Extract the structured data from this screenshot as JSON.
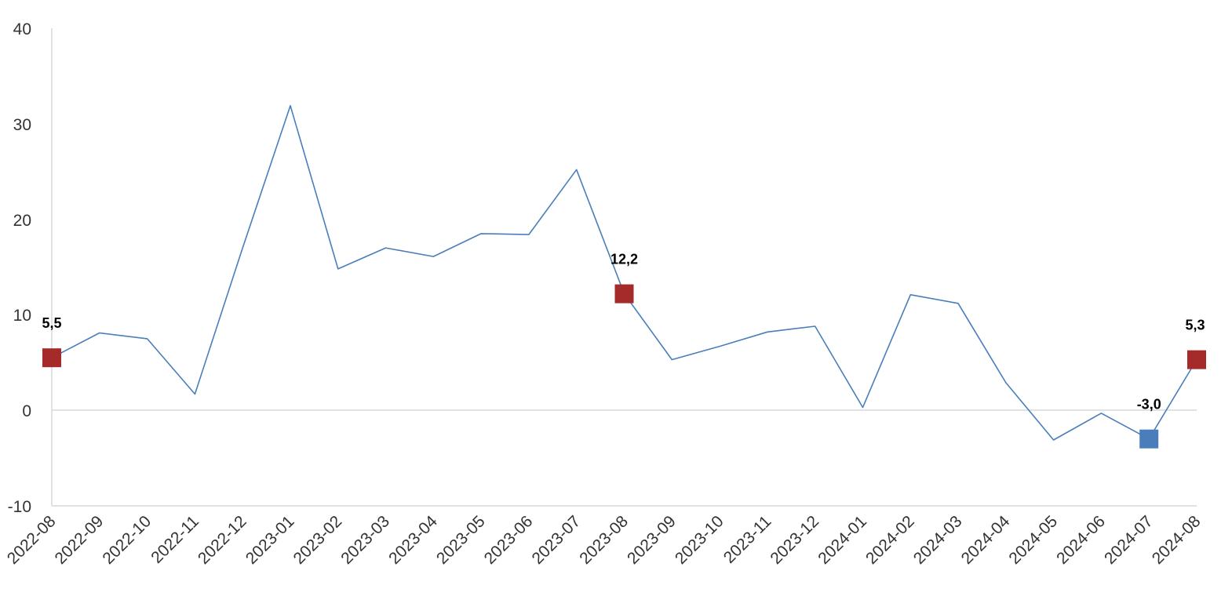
{
  "chart_data": {
    "type": "line",
    "title": "",
    "xlabel": "",
    "ylabel": "",
    "ylim": [
      -10,
      40
    ],
    "yticks": [
      "40",
      "30",
      "20",
      "10",
      "0",
      "-10"
    ],
    "grid": false,
    "zero_line": true,
    "colors": {
      "line": "#4a7ebb",
      "marker_high": "#a52a2a",
      "marker_low": "#4a7ebb",
      "axis": "#d9d9d9"
    },
    "categories": [
      "2022-08",
      "2022-09",
      "2022-10",
      "2022-11",
      "2022-12",
      "2023-01",
      "2023-02",
      "2023-03",
      "2023-04",
      "2023-05",
      "2023-06",
      "2023-07",
      "2023-08",
      "2023-09",
      "2023-10",
      "2023-11",
      "2023-12",
      "2024-01",
      "2024-02",
      "2024-03",
      "2024-04",
      "2024-05",
      "2024-06",
      "2024-07",
      "2024-08"
    ],
    "series": [
      {
        "values": [
          5.5,
          8.1,
          7.5,
          1.7,
          17.0,
          31.9,
          14.8,
          17.0,
          16.1,
          18.5,
          18.4,
          25.2,
          12.2,
          5.3,
          6.7,
          8.2,
          8.8,
          0.3,
          12.1,
          11.2,
          2.9,
          -3.1,
          -0.3,
          -3.0,
          5.3
        ]
      }
    ],
    "highlighted_points": [
      {
        "index": 0,
        "label": "5,5",
        "color": "#a52a2a"
      },
      {
        "index": 12,
        "label": "12,2",
        "color": "#a52a2a"
      },
      {
        "index": 23,
        "label": "-3,0",
        "color": "#4a7ebb"
      },
      {
        "index": 24,
        "label": "5,3",
        "color": "#a52a2a"
      }
    ]
  }
}
